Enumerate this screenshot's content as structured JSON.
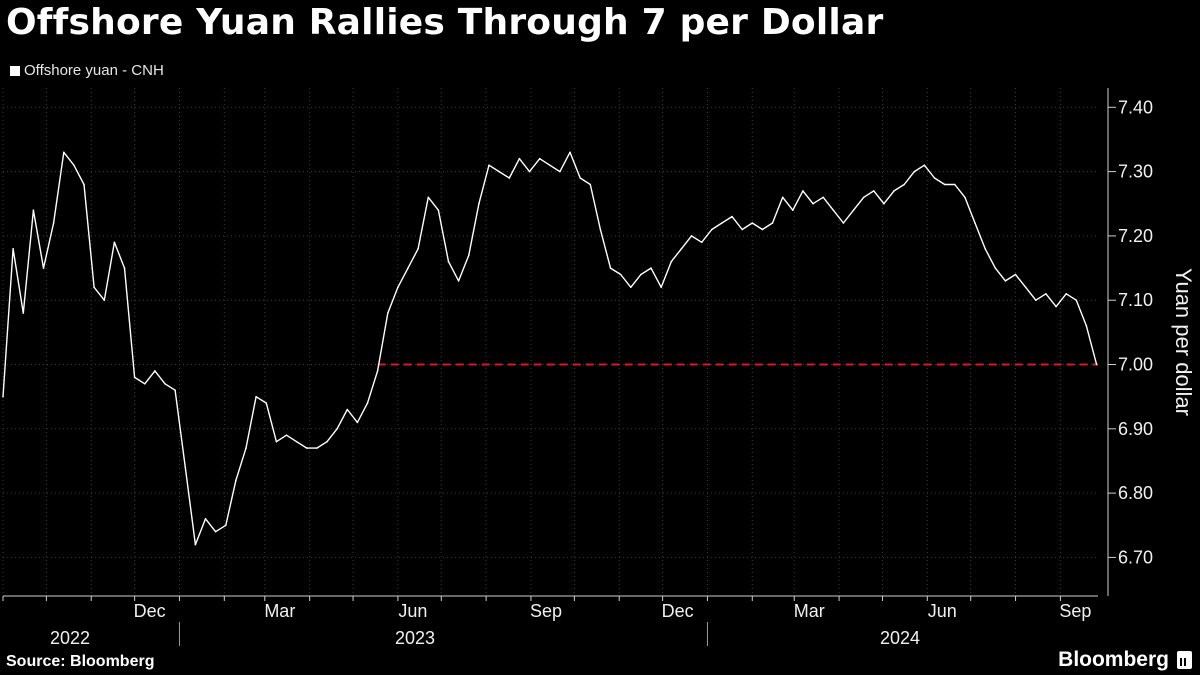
{
  "title": "Offshore Yuan Rallies Through 7 per Dollar",
  "legend_label": "Offshore yuan - CNH",
  "source": "Source: Bloomberg",
  "brand": "Bloomberg",
  "colors": {
    "background": "#000000",
    "series": "#ffffff",
    "reference_line": "#e0132b",
    "grid": "#3a3a3a"
  },
  "chart_data": {
    "type": "line",
    "ylabel": "Yuan per dollar",
    "ylim": [
      6.64,
      7.43
    ],
    "y_ticks": [
      "7.40",
      "7.30",
      "7.20",
      "7.10",
      "7.00",
      "6.90",
      "6.80",
      "6.70"
    ],
    "x_ticks": [
      "Dec",
      "Mar",
      "Jun",
      "Sep",
      "Dec",
      "Mar",
      "Jun",
      "Sep"
    ],
    "x_years": [
      "2022",
      "2023",
      "2024"
    ],
    "xlim": [
      "2022-09-01",
      "2024-09-27"
    ],
    "grid": true,
    "legend_position": "top-left",
    "reference_line": {
      "y": 7.0,
      "style": "dashed",
      "color": "#e0132b"
    },
    "series": [
      {
        "name": "Offshore yuan - CNH",
        "x": [
          "2022-09-01",
          "2022-09-08",
          "2022-09-15",
          "2022-09-22",
          "2022-09-29",
          "2022-10-06",
          "2022-10-13",
          "2022-10-20",
          "2022-10-27",
          "2022-11-03",
          "2022-11-10",
          "2022-11-17",
          "2022-11-24",
          "2022-12-01",
          "2022-12-08",
          "2022-12-15",
          "2022-12-22",
          "2022-12-29",
          "2023-01-05",
          "2023-01-12",
          "2023-01-19",
          "2023-01-26",
          "2023-02-02",
          "2023-02-09",
          "2023-02-16",
          "2023-02-23",
          "2023-03-02",
          "2023-03-09",
          "2023-03-16",
          "2023-03-23",
          "2023-03-30",
          "2023-04-06",
          "2023-04-13",
          "2023-04-20",
          "2023-04-27",
          "2023-05-04",
          "2023-05-11",
          "2023-05-18",
          "2023-05-25",
          "2023-06-01",
          "2023-06-08",
          "2023-06-15",
          "2023-06-22",
          "2023-06-29",
          "2023-07-06",
          "2023-07-13",
          "2023-07-20",
          "2023-07-27",
          "2023-08-03",
          "2023-08-10",
          "2023-08-17",
          "2023-08-24",
          "2023-08-31",
          "2023-09-07",
          "2023-09-14",
          "2023-09-21",
          "2023-09-28",
          "2023-10-05",
          "2023-10-12",
          "2023-10-19",
          "2023-10-26",
          "2023-11-02",
          "2023-11-09",
          "2023-11-16",
          "2023-11-23",
          "2023-11-30",
          "2023-12-07",
          "2023-12-14",
          "2023-12-21",
          "2023-12-28",
          "2024-01-04",
          "2024-01-11",
          "2024-01-18",
          "2024-01-25",
          "2024-02-01",
          "2024-02-08",
          "2024-02-15",
          "2024-02-22",
          "2024-02-29",
          "2024-03-07",
          "2024-03-14",
          "2024-03-21",
          "2024-03-28",
          "2024-04-04",
          "2024-04-11",
          "2024-04-18",
          "2024-04-25",
          "2024-05-02",
          "2024-05-09",
          "2024-05-16",
          "2024-05-23",
          "2024-05-30",
          "2024-06-06",
          "2024-06-13",
          "2024-06-20",
          "2024-06-27",
          "2024-07-04",
          "2024-07-11",
          "2024-07-18",
          "2024-07-25",
          "2024-08-01",
          "2024-08-08",
          "2024-08-15",
          "2024-08-22",
          "2024-08-29",
          "2024-09-05",
          "2024-09-12",
          "2024-09-19",
          "2024-09-26"
        ],
        "values": [
          6.95,
          7.18,
          7.08,
          7.24,
          7.15,
          7.22,
          7.33,
          7.31,
          7.28,
          7.12,
          7.1,
          7.19,
          7.15,
          6.98,
          6.97,
          6.99,
          6.97,
          6.96,
          6.84,
          6.72,
          6.76,
          6.74,
          6.75,
          6.82,
          6.87,
          6.95,
          6.94,
          6.88,
          6.89,
          6.88,
          6.87,
          6.87,
          6.88,
          6.9,
          6.93,
          6.91,
          6.94,
          6.99,
          7.08,
          7.12,
          7.15,
          7.18,
          7.26,
          7.24,
          7.16,
          7.13,
          7.17,
          7.25,
          7.31,
          7.3,
          7.29,
          7.32,
          7.3,
          7.32,
          7.31,
          7.3,
          7.33,
          7.29,
          7.28,
          7.21,
          7.15,
          7.14,
          7.12,
          7.14,
          7.15,
          7.12,
          7.16,
          7.18,
          7.2,
          7.19,
          7.21,
          7.22,
          7.23,
          7.21,
          7.22,
          7.21,
          7.22,
          7.26,
          7.24,
          7.27,
          7.25,
          7.26,
          7.24,
          7.22,
          7.24,
          7.26,
          7.27,
          7.25,
          7.27,
          7.28,
          7.3,
          7.31,
          7.29,
          7.28,
          7.28,
          7.26,
          7.22,
          7.18,
          7.15,
          7.13,
          7.14,
          7.12,
          7.1,
          7.11,
          7.09,
          7.11,
          7.1,
          7.06,
          7.0
        ]
      }
    ]
  }
}
